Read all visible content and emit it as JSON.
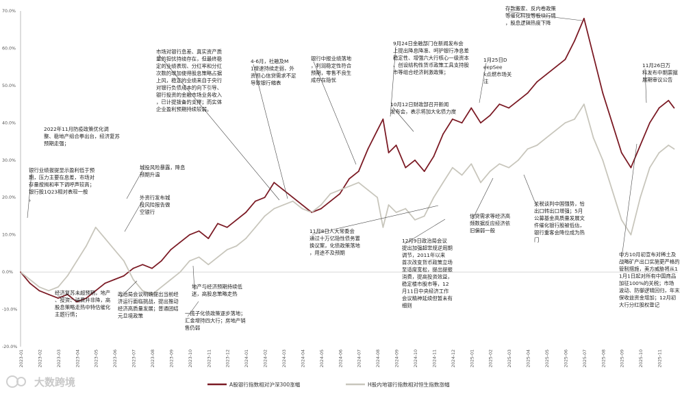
{
  "chart_data": {
    "type": "line",
    "title": "",
    "xlabel": "",
    "ylabel": "",
    "ylim": [
      -20,
      70
    ],
    "y_ticks": [
      "70.0%",
      "60.0%",
      "50.0%",
      "40.0%",
      "30.0%",
      "20.0%",
      "10.0%",
      "0.0%",
      "-10.0%",
      "-20.0%"
    ],
    "x_ticks": [
      "2023-01",
      "2023-02",
      "2023-03",
      "2023-04",
      "2023-05",
      "2023-06",
      "2023-07",
      "2023-08",
      "2023-09",
      "2023-10",
      "2023-11",
      "2023-12",
      "2024-01",
      "2024-02",
      "2024-03",
      "2024-04",
      "2024-05",
      "2024-06",
      "2024-07",
      "2024-08",
      "2024-09",
      "2024-10",
      "2024-11",
      "2024-12",
      "2025-01",
      "2025-02",
      "2025-03",
      "2025-04",
      "2025-05",
      "2025-06",
      "2025-07",
      "2025-08",
      "2025-09",
      "2025-10",
      "2025-11"
    ],
    "grid": false,
    "legend_position": "bottom",
    "series": [
      {
        "name": "A股银行指数相对沪深300涨幅",
        "color": "#7b1a24",
        "x": [
          0,
          0.5,
          1,
          1.5,
          2,
          2.5,
          3,
          3.5,
          4,
          4.5,
          5,
          5.5,
          6,
          6.5,
          7,
          7.5,
          8,
          8.5,
          9,
          9.5,
          10,
          10.5,
          11,
          11.5,
          12,
          12.5,
          13,
          13.5,
          14,
          14.5,
          15,
          15.5,
          16,
          16.5,
          17,
          17.5,
          18,
          18.5,
          19,
          19.3,
          19.6,
          20,
          20.5,
          21,
          21.5,
          22,
          22.5,
          23,
          23.5,
          24,
          24.5,
          25,
          25.5,
          26,
          26.5,
          27,
          27.5,
          28,
          28.5,
          29,
          29.5,
          30,
          30.5,
          31,
          31.5,
          32,
          32.5,
          33,
          33.5,
          34,
          34.5,
          34.8
        ],
        "y": [
          0,
          -3,
          -5,
          -6,
          -7,
          -6,
          -8,
          -7,
          -5,
          -3,
          -2,
          -1,
          1,
          2,
          1,
          3,
          6,
          8,
          10,
          11,
          9,
          13,
          12,
          14,
          16,
          19,
          20,
          24,
          22,
          20,
          18,
          16,
          17,
          19,
          21,
          25,
          27,
          33,
          38,
          41,
          32,
          34,
          28,
          30,
          27,
          31,
          37,
          41,
          40,
          44,
          40,
          42,
          45,
          44,
          46,
          48,
          51,
          53,
          55,
          57,
          62,
          68,
          58,
          48,
          40,
          32,
          28,
          34,
          40,
          44,
          46,
          44
        ]
      },
      {
        "name": "H股内地银行指数相对恒生指数涨幅",
        "color": "#c8c6bc",
        "x": [
          0,
          0.5,
          1,
          1.5,
          2,
          2.5,
          3,
          3.5,
          4,
          4.5,
          5,
          5.5,
          6,
          6.5,
          7,
          7.5,
          8,
          8.5,
          9,
          9.5,
          10,
          10.5,
          11,
          11.5,
          12,
          12.5,
          13,
          13.5,
          14,
          14.5,
          15,
          15.5,
          16,
          16.5,
          17,
          17.5,
          18,
          18.5,
          19,
          19.3,
          19.6,
          20,
          20.5,
          21,
          21.5,
          22,
          22.5,
          23,
          23.5,
          24,
          24.5,
          25,
          25.5,
          26,
          26.5,
          27,
          27.5,
          28,
          28.5,
          29,
          29.5,
          30,
          30.5,
          31,
          31.5,
          32,
          32.5,
          33,
          33.5,
          34,
          34.5,
          34.8
        ],
        "y": [
          0,
          -2,
          -4,
          -5,
          -4,
          -1,
          3,
          7,
          12,
          9,
          6,
          3,
          -2,
          -5,
          -6,
          -4,
          -2,
          0,
          3,
          4,
          2,
          4,
          6,
          7,
          9,
          12,
          15,
          17,
          18,
          19,
          17,
          16,
          18,
          21,
          22,
          23,
          24,
          22,
          20,
          12,
          18,
          16,
          17,
          14,
          15,
          20,
          24,
          28,
          26,
          29,
          24,
          27,
          29,
          28,
          30,
          33,
          34,
          36,
          38,
          40,
          41,
          45,
          36,
          30,
          22,
          14,
          10,
          20,
          28,
          32,
          34,
          33
        ]
      }
    ],
    "annotations": [
      "2022年11月防疫政策优化调整、稳地产组合拳出台，经济复苏预期走强；",
      "银行业绩拔提显示盈利低于预期，压力主要在息差，市场对存量按揭和率下调呼声较高；银行股1Q23相对表现一般。",
      "经济复苏未超预期，地产、投资、消费并非降，高股息策略走热中特估催化主题行情；",
      "城投风险暴露，降息预期升温",
      "外资行发布城投风险报告做空银行",
      "政治局会议明确提出当前经济运行面临挑战，提出推动经济高质量发展；普通团结元旦境政策",
      "地产与经济预期持续低迷，高股息策略走热",
      "一揽子化债政策逐步落地；汇金增持四大行；房地产销售仍弱",
      "市场对银行息差、真实资产质量的担忧持续存在，但最终稳定的业绩表现、分红率和分红次数的增加使得股息策略占据上风，稳定的业绩来自于央行对银行负债成本的向下引导、银行投资的金融市场业务收入，已计提拨备的支撑；而实体企业盈利预期持续较弱。",
      "4-6月，社融及M1增速持续走弱，外资担心信贷需求不足导致银行缩表",
      "银行中报业绩落地，利润稳定性符合预期，零售不良生成存在隐忧",
      "9月24日金融部门在新闻发布会上提出降息降准、呵护银行净息差稳定性、增强六大行核心一级资本、创设结构性货币政策工具支持股市等组合经济刺激政策；",
      "10月12日财政部召开新闻发布会，表示将加大化债力度",
      "1月25日DeepSeek点燃市场关注",
      "11月8日人大常委会通过十万亿隐性债务置换议案，化债政策落地，用途不及预期",
      "12月9日政治局会议提出加强超常规逆周期调节，2011年以来首次改变货币政策立场至适度宽松，提出提振消费，提高投资效益，稳定楼市股市等，12月11日中央经济工作会议精神延续但暂未有细则",
      "信贷需求等经济高频数据反应经济依旧偏弱一般",
      "关税谈判中国强势，恰出口转出口增强；5月公募基金高质量发展文件催化银行股被低估，银行重客会降位成为热门",
      "存款搬家、反内卷政策等催化科技等板块行情，股息逻辑热度下降",
      "11月26日万科发布中期票据展期审议公告",
      "中方10月初宣布对稀土及战略矿产出口实施更严格的管制措施，美方威胁将从11月1日起对所有中国商品加征100%的关税；市场波动、防御逻辑回归，年末保收益资金增加；12月初大行分红股权登记"
    ]
  },
  "branding": {
    "logo_text": "大数跨境"
  }
}
